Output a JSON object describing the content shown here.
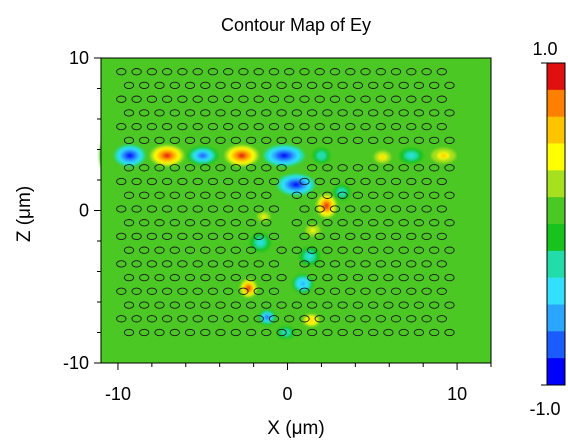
{
  "chart_data": {
    "type": "heatmap",
    "title": "Contour Map of Ey",
    "xlabel": "X (μm)",
    "ylabel": "Z (μm)",
    "xlim": [
      -11,
      12
    ],
    "ylim": [
      -10,
      10
    ],
    "x_ticks": [
      {
        "value": -10,
        "label": "-10"
      },
      {
        "value": 0,
        "label": "0"
      },
      {
        "value": 10,
        "label": "10"
      }
    ],
    "y_ticks": [
      {
        "value": 10,
        "label": "10"
      },
      {
        "value": 0,
        "label": "0"
      },
      {
        "value": -10,
        "label": "-10"
      }
    ],
    "colorbar": {
      "min": -1.0,
      "max": 1.0,
      "min_label": "-1.0",
      "max_label": "1.0",
      "colors": [
        "#0000ff",
        "#1a5cff",
        "#2aa6ff",
        "#33e0ff",
        "#22ddaa",
        "#19c31e",
        "#4bc823",
        "#a6e01e",
        "#ffff00",
        "#ffc400",
        "#ff8000",
        "#e01010"
      ]
    },
    "background_value": 0,
    "lattice": {
      "x_range": [
        -9.8,
        9.8
      ],
      "z_range": [
        -8.6,
        9.1
      ],
      "pitch_x": 0.9,
      "row_pitch": 0.9,
      "hole_radius": 0.28,
      "waveguide_row_z": 3.6,
      "bent_waveguide_center_x": [
        0.5,
        0.2,
        -0.3,
        0.5,
        -0.5,
        0.2,
        -0.9,
        0.3,
        0.7,
        -0.3
      ]
    },
    "regions": [
      {
        "x": -10.6,
        "z": 3.6,
        "value": 0.12,
        "rx": 0.5,
        "rz": 1.2
      },
      {
        "x": -9.3,
        "z": 3.6,
        "value": -0.95,
        "rx": 0.9,
        "rz": 0.7
      },
      {
        "x": -7.1,
        "z": 3.6,
        "value": 0.95,
        "rx": 1.0,
        "rz": 0.7
      },
      {
        "x": -5.0,
        "z": 3.6,
        "value": -0.75,
        "rx": 0.9,
        "rz": 0.6
      },
      {
        "x": -2.7,
        "z": 3.6,
        "value": 0.9,
        "rx": 1.0,
        "rz": 0.7
      },
      {
        "x": -0.2,
        "z": 3.6,
        "value": -0.9,
        "rx": 1.2,
        "rz": 0.7
      },
      {
        "x": 2.0,
        "z": 3.6,
        "value": -0.3,
        "rx": 0.5,
        "rz": 0.5
      },
      {
        "x": 5.6,
        "z": 3.5,
        "value": 0.5,
        "rx": 0.6,
        "rz": 0.5
      },
      {
        "x": 7.3,
        "z": 3.6,
        "value": -0.35,
        "rx": 0.7,
        "rz": 0.5
      },
      {
        "x": 9.2,
        "z": 3.6,
        "value": 0.55,
        "rx": 0.9,
        "rz": 0.6
      },
      {
        "x": 0.5,
        "z": 1.7,
        "value": -0.9,
        "rx": 1.1,
        "rz": 0.7
      },
      {
        "x": 2.3,
        "z": 0.3,
        "value": 0.95,
        "rx": 0.6,
        "rz": 0.8
      },
      {
        "x": 3.2,
        "z": 1.2,
        "value": -0.3,
        "rx": 0.5,
        "rz": 0.5
      },
      {
        "x": -1.4,
        "z": -0.4,
        "value": 0.4,
        "rx": 0.6,
        "rz": 0.5
      },
      {
        "x": 1.5,
        "z": -1.3,
        "value": 0.35,
        "rx": 0.7,
        "rz": 0.6
      },
      {
        "x": -1.6,
        "z": -2.1,
        "value": -0.35,
        "rx": 0.6,
        "rz": 0.6
      },
      {
        "x": 1.3,
        "z": -3.0,
        "value": -0.4,
        "rx": 0.6,
        "rz": 0.6
      },
      {
        "x": -2.3,
        "z": -5.1,
        "value": 0.9,
        "rx": 0.5,
        "rz": 0.6
      },
      {
        "x": 0.9,
        "z": -4.8,
        "value": -0.6,
        "rx": 0.6,
        "rz": 0.6
      },
      {
        "x": -1.2,
        "z": -7.0,
        "value": -0.7,
        "rx": 0.5,
        "rz": 0.5
      },
      {
        "x": 1.4,
        "z": -7.2,
        "value": 0.6,
        "rx": 0.6,
        "rz": 0.5
      },
      {
        "x": -0.1,
        "z": -8.0,
        "value": -0.3,
        "rx": 0.5,
        "rz": 0.4
      }
    ]
  }
}
